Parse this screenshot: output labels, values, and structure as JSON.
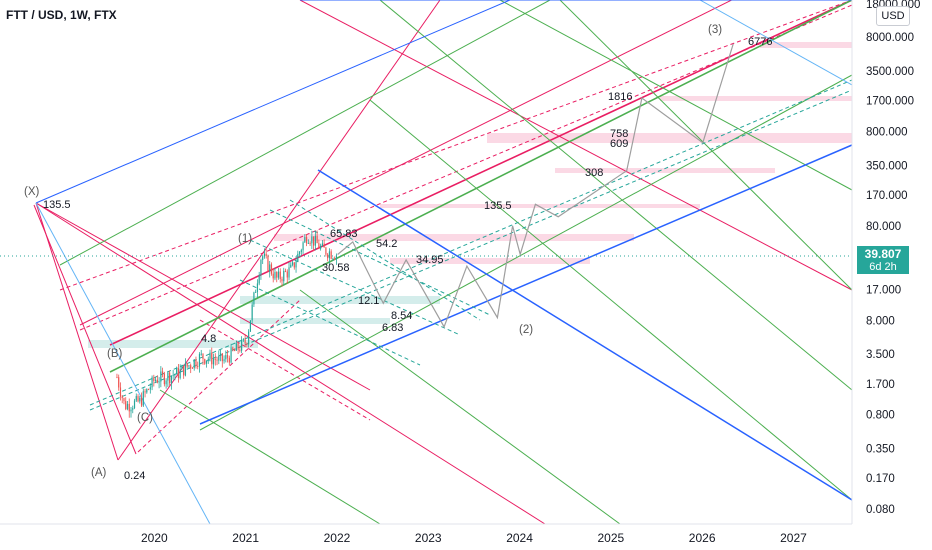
{
  "header": {
    "symbol_title": "FTT / USD, 1W, FTX",
    "currency_button": "USD"
  },
  "price_badge": {
    "price": "39.807",
    "countdown": "6d 2h",
    "color": "#26a69a"
  },
  "colors": {
    "up": "#26a69a",
    "down": "#ef5350",
    "pitchfork_red": "#e91e63",
    "pitchfork_green": "#4caf50",
    "pitchfork_blue": "#2962ff",
    "projection": "#9e9e9e",
    "support_zone": "#b2dfdb",
    "resistance_zone": "#f8bbd0"
  },
  "chart_data": {
    "type": "line",
    "title": "FTT / USD, 1W, FTX",
    "y_scale": "log",
    "y_ticks": [
      "18000.000",
      "8000.000",
      "3500.000",
      "1700.000",
      "800.000",
      "350.000",
      "170.000",
      "80.000",
      "17.000",
      "8.000",
      "3.500",
      "1.700",
      "0.800",
      "0.350",
      "0.170",
      "0.080"
    ],
    "x_ticks": [
      "2020",
      "2021",
      "2022",
      "2023",
      "2024",
      "2025",
      "2026",
      "2027"
    ],
    "last_price": 39.807,
    "historical_price_path": [
      {
        "x": "2019-08",
        "y": 2.0
      },
      {
        "x": "2019-09",
        "y": 1.0
      },
      {
        "x": "2019-11",
        "y": 1.1
      },
      {
        "x": "2020-01",
        "y": 1.9
      },
      {
        "x": "2020-04",
        "y": 2.2
      },
      {
        "x": "2020-07",
        "y": 3.3
      },
      {
        "x": "2020-10",
        "y": 3.0
      },
      {
        "x": "2021-01",
        "y": 4.8
      },
      {
        "x": "2021-03",
        "y": 40
      },
      {
        "x": "2021-05",
        "y": 22
      },
      {
        "x": "2021-07",
        "y": 28
      },
      {
        "x": "2021-09",
        "y": 65.83
      },
      {
        "x": "2021-11",
        "y": 45
      },
      {
        "x": "2022-01",
        "y": 39.8
      }
    ],
    "projected_path": [
      {
        "x": "2022-03",
        "y": 54.2
      },
      {
        "x": "2022-07",
        "y": 12.1
      },
      {
        "x": "2022-10",
        "y": 34.95
      },
      {
        "x": "2023-03",
        "y": 6.83
      },
      {
        "x": "2023-06",
        "y": 30
      },
      {
        "x": "2023-10",
        "y": 8.54
      },
      {
        "x": "2023-12",
        "y": 80
      },
      {
        "x": "2024-01",
        "y": 40
      },
      {
        "x": "2024-03",
        "y": 135.5
      },
      {
        "x": "2024-06",
        "y": 100
      },
      {
        "x": "2025-03",
        "y": 308
      },
      {
        "x": "2025-05",
        "y": 1816
      },
      {
        "x": "2026-01",
        "y": 609
      },
      {
        "x": "2026-05",
        "y": 6776
      }
    ],
    "level_labels": [
      "135.5",
      "65.83",
      "54.2",
      "30.58",
      "34.95",
      "12.1",
      "8.54",
      "6.83",
      "4.8",
      "0.24",
      "308",
      "1816",
      "758",
      "609",
      "6776",
      "135.5"
    ],
    "wave_labels": [
      "(X)",
      "(A)",
      "(B)",
      "(C)",
      "(1)",
      "(2)",
      "(3)"
    ]
  }
}
